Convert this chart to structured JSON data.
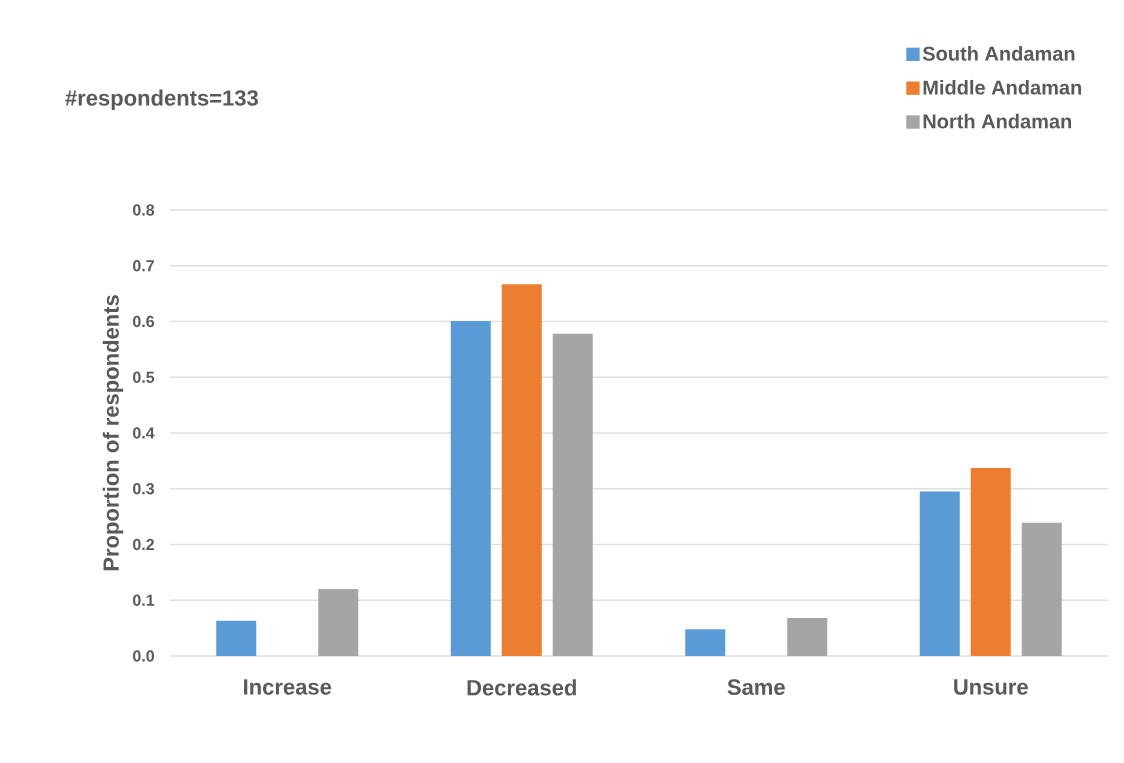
{
  "chart_data": {
    "type": "bar",
    "ylabel": "Proportion of respondents",
    "annotations": [
      "#respondents=133"
    ],
    "categories": [
      "Increase",
      "Decreased",
      "Same",
      "Unsure"
    ],
    "series": [
      {
        "name": "South Andaman",
        "color": "#5b9bd5",
        "values": [
          0.063,
          0.601,
          0.048,
          0.295
        ]
      },
      {
        "name": "Middle Andaman",
        "color": "#ed7d31",
        "values": [
          0,
          0.667,
          0,
          0.337
        ]
      },
      {
        "name": "North Andaman",
        "color": "#a5a5a5",
        "values": [
          0.12,
          0.578,
          0.068,
          0.239
        ]
      }
    ],
    "ylim": [
      0,
      0.8
    ],
    "yticks": [
      {
        "value": 0,
        "label": "0.0"
      },
      {
        "value": 0.1,
        "label": "0.1"
      },
      {
        "value": 0.2,
        "label": "0.2"
      },
      {
        "value": 0.3,
        "label": "0.3"
      },
      {
        "value": 0.4,
        "label": "0.4"
      },
      {
        "value": 0.5,
        "label": "0.5"
      },
      {
        "value": 0.6,
        "label": "0.6"
      },
      {
        "value": 0.7,
        "label": "0.7"
      },
      {
        "value": 0.8,
        "label": "0.8"
      }
    ],
    "grid": "y",
    "legend": "top right"
  }
}
